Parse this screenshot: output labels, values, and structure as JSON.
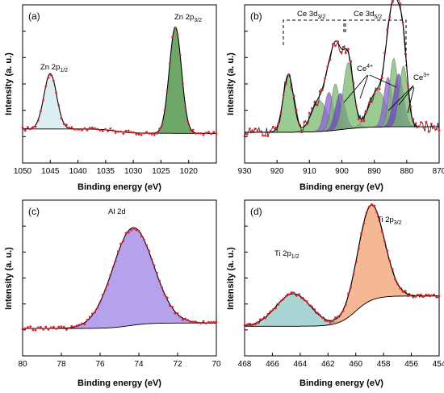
{
  "chart_data": [
    {
      "type": "line",
      "panel": "(a)",
      "xlabel": "Binding energy (eV)",
      "ylabel": "Intensity (a. u.)",
      "xlim": [
        1050,
        1015
      ],
      "xticks": [
        1050,
        1045,
        1040,
        1035,
        1030,
        1025,
        1020
      ],
      "xtick_labels": [
        "1050",
        "1045",
        "1040",
        "1035",
        "1030",
        "1025",
        "1020"
      ],
      "x_reversed": true,
      "y_tick_labels_shown": false,
      "y_norm_range": [
        0,
        1.05
      ],
      "baseline": {
        "start": 0.02,
        "end": 0.06,
        "step_center": 1033,
        "step_width": 6
      },
      "peaks": [
        {
          "name": "",
          "label_main": "Zn 2p",
          "label_sub": "1/2",
          "center": 1045.0,
          "height": 0.5,
          "width": 1.15,
          "color": "#cfe8ee"
        },
        {
          "name": "",
          "label_main": "Zn 2p",
          "label_sub": "3/2",
          "center": 1022.4,
          "height": 0.96,
          "width": 1.1,
          "color": "#3f8a3a"
        }
      ],
      "legend": "none",
      "grid": false
    },
    {
      "type": "line",
      "panel": "(b)",
      "xlabel": "Binding energy (eV)",
      "ylabel": "Intensity (a. u.)",
      "xlim": [
        930,
        870
      ],
      "xticks": [
        930,
        920,
        910,
        900,
        890,
        880,
        870
      ],
      "xtick_labels": [
        "930",
        "920",
        "910",
        "900",
        "890",
        "880",
        "870"
      ],
      "x_reversed": true,
      "y_tick_labels_shown": false,
      "y_norm_range": [
        0,
        1.05
      ],
      "baseline": {
        "start": 0.08,
        "end": 0.03,
        "step_center": 900,
        "step_width": 15
      },
      "peaks": [
        {
          "name": "",
          "center": 916.5,
          "height": 0.52,
          "width": 1.6,
          "color": "#79b86e"
        },
        {
          "name": "",
          "center": 907.0,
          "height": 0.28,
          "width": 2.4,
          "color": "#79b86e"
        },
        {
          "name": "",
          "center": 904.0,
          "height": 0.35,
          "width": 1.4,
          "color": "#8a63d4"
        },
        {
          "name": "",
          "center": 902.0,
          "height": 0.42,
          "width": 1.3,
          "color": "#79b86e"
        },
        {
          "name": "",
          "center": 900.5,
          "height": 0.33,
          "width": 1.5,
          "color": "#6c46c6"
        },
        {
          "name": "",
          "center": 898.0,
          "height": 0.6,
          "width": 1.6,
          "color": "#79b86e"
        },
        {
          "name": "",
          "center": 889.0,
          "height": 0.33,
          "width": 2.6,
          "color": "#79b86e"
        },
        {
          "name": "",
          "center": 885.8,
          "height": 0.45,
          "width": 1.3,
          "color": "#8a63d4"
        },
        {
          "name": "",
          "center": 884.0,
          "height": 0.62,
          "width": 1.3,
          "color": "#79b86e"
        },
        {
          "name": "",
          "center": 882.5,
          "height": 0.48,
          "width": 1.5,
          "color": "#6c46c6"
        },
        {
          "name": "",
          "center": 881.0,
          "height": 0.55,
          "width": 1.3,
          "color": "#79b86e"
        }
      ],
      "annotations": {
        "ce3d32_main": "Ce 3d",
        "ce3d32_sub": "3/2",
        "ce3d52_main": "Ce 3d",
        "ce3d52_sub": "5/2",
        "ce4_main": "Ce",
        "ce4_sup": "4+",
        "ce3_main": "Ce",
        "ce3_sup": "3+"
      },
      "legend": "none",
      "grid": false
    },
    {
      "type": "line",
      "panel": "(c)",
      "xlabel": "Binding energy (eV)",
      "ylabel": "Intensity (a. u.)",
      "xlim": [
        80,
        70
      ],
      "xticks": [
        80,
        78,
        76,
        74,
        72,
        70
      ],
      "xtick_labels": [
        "80",
        "78",
        "76",
        "74",
        "72",
        "70"
      ],
      "x_reversed": true,
      "y_tick_labels_shown": false,
      "y_norm_range": [
        0,
        1.05
      ],
      "baseline": {
        "start": 0.05,
        "end": 0.0,
        "step_center": 74.5,
        "step_width": 2
      },
      "peaks": [
        {
          "name": "",
          "label_main": "Al 2d",
          "center": 74.3,
          "height": 0.9,
          "width": 1.05,
          "color": "#9e83e6"
        }
      ],
      "legend": "none",
      "grid": false
    },
    {
      "type": "line",
      "panel": "(d)",
      "xlabel": "Binding energy (eV)",
      "ylabel": "Intensity (a. u.)",
      "xlim": [
        468,
        454
      ],
      "xticks": [
        468,
        466,
        464,
        462,
        460,
        458,
        456,
        454
      ],
      "xtick_labels": [
        "468",
        "466",
        "464",
        "462",
        "460",
        "458",
        "456",
        "454"
      ],
      "x_reversed": true,
      "y_tick_labels_shown": false,
      "y_norm_range": [
        0,
        1.05
      ],
      "baseline": {
        "start": 0.3,
        "end": 0.02,
        "step_center": 460,
        "step_width": 2.5
      },
      "peaks": [
        {
          "name": "",
          "label_main": "Ti 2p",
          "label_sub": "1/2",
          "center": 464.5,
          "height": 0.3,
          "width": 1.25,
          "color": "#8cc7c6"
        },
        {
          "name": "",
          "label_main": "Ti 2p",
          "label_sub": "3/2",
          "center": 458.9,
          "height": 0.88,
          "width": 0.95,
          "color": "#f0a071"
        }
      ],
      "legend": "none",
      "grid": false
    }
  ]
}
